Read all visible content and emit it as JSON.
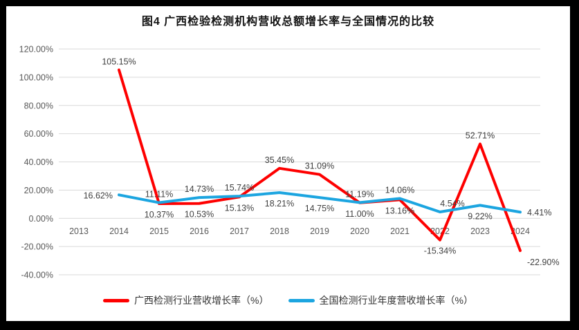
{
  "title": "图4 广西检验检测机构营收总额增长率与全国情况的比较",
  "frame": {
    "border_color": "#000000",
    "background": "#ffffff"
  },
  "chart_data": {
    "type": "line",
    "title": "图4 广西检验检测机构营收总额增长率与全国情况的比较",
    "categories": [
      "2013",
      "2014",
      "2015",
      "2016",
      "2017",
      "2018",
      "2019",
      "2020",
      "2021",
      "2022",
      "2023",
      "2024"
    ],
    "series": [
      {
        "name": "广西检测行业营收增长率（%）",
        "color": "#fe0000",
        "values": [
          null,
          105.15,
          10.37,
          10.53,
          15.13,
          35.45,
          31.09,
          11.0,
          13.16,
          -15.34,
          52.71,
          -22.9
        ],
        "point_labels": [
          "",
          "105.15%",
          "10.37%",
          "10.53%",
          "15.13%",
          "35.45%",
          "31.09%",
          "11.00%",
          "13.16%",
          "-15.34%",
          "52.71%",
          "-22.90%"
        ],
        "label_positions": [
          "",
          "above",
          "below",
          "below",
          "below",
          "above",
          "above",
          "below",
          "below",
          "below",
          "above",
          "below-right"
        ]
      },
      {
        "name": "全国检测行业年度营收增长率（%）",
        "color": "#1ca5e0",
        "values": [
          null,
          16.62,
          11.11,
          14.73,
          15.74,
          18.21,
          14.75,
          11.19,
          14.06,
          4.54,
          9.22,
          4.41
        ],
        "point_labels": [
          "",
          "16.62%",
          "11.11%",
          "14.73%",
          "15.74%",
          "18.21%",
          "14.75%",
          "11.19%",
          "14.06%",
          "4.54%",
          "9.22%",
          "4.41%"
        ],
        "label_positions": [
          "",
          "left",
          "above",
          "above",
          "above",
          "below",
          "below",
          "above",
          "above",
          "above-right",
          "below",
          "right"
        ]
      }
    ],
    "yticks": [
      {
        "value": 120,
        "label": "120.00%"
      },
      {
        "value": 100,
        "label": "100.00%"
      },
      {
        "value": 80,
        "label": "80.00%"
      },
      {
        "value": 60,
        "label": "60.00%"
      },
      {
        "value": 40,
        "label": "40.00%"
      },
      {
        "value": 20,
        "label": "20.00%"
      },
      {
        "value": 0,
        "label": "0.00%"
      },
      {
        "value": -20,
        "label": "-20.00%"
      },
      {
        "value": -40,
        "label": "-40.00%"
      }
    ],
    "ylim": [
      -40,
      120
    ],
    "grid": true,
    "legend_position": "bottom",
    "colors": {
      "gridline": "#d9d9d9",
      "axis_text": "#595959",
      "data_label": "#404040"
    }
  },
  "legend": {
    "items": [
      {
        "label": "广西检测行业营收增长率（%）",
        "color": "#fe0000"
      },
      {
        "label": "全国检测行业年度营收增长率（%）",
        "color": "#1ca5e0"
      }
    ]
  }
}
